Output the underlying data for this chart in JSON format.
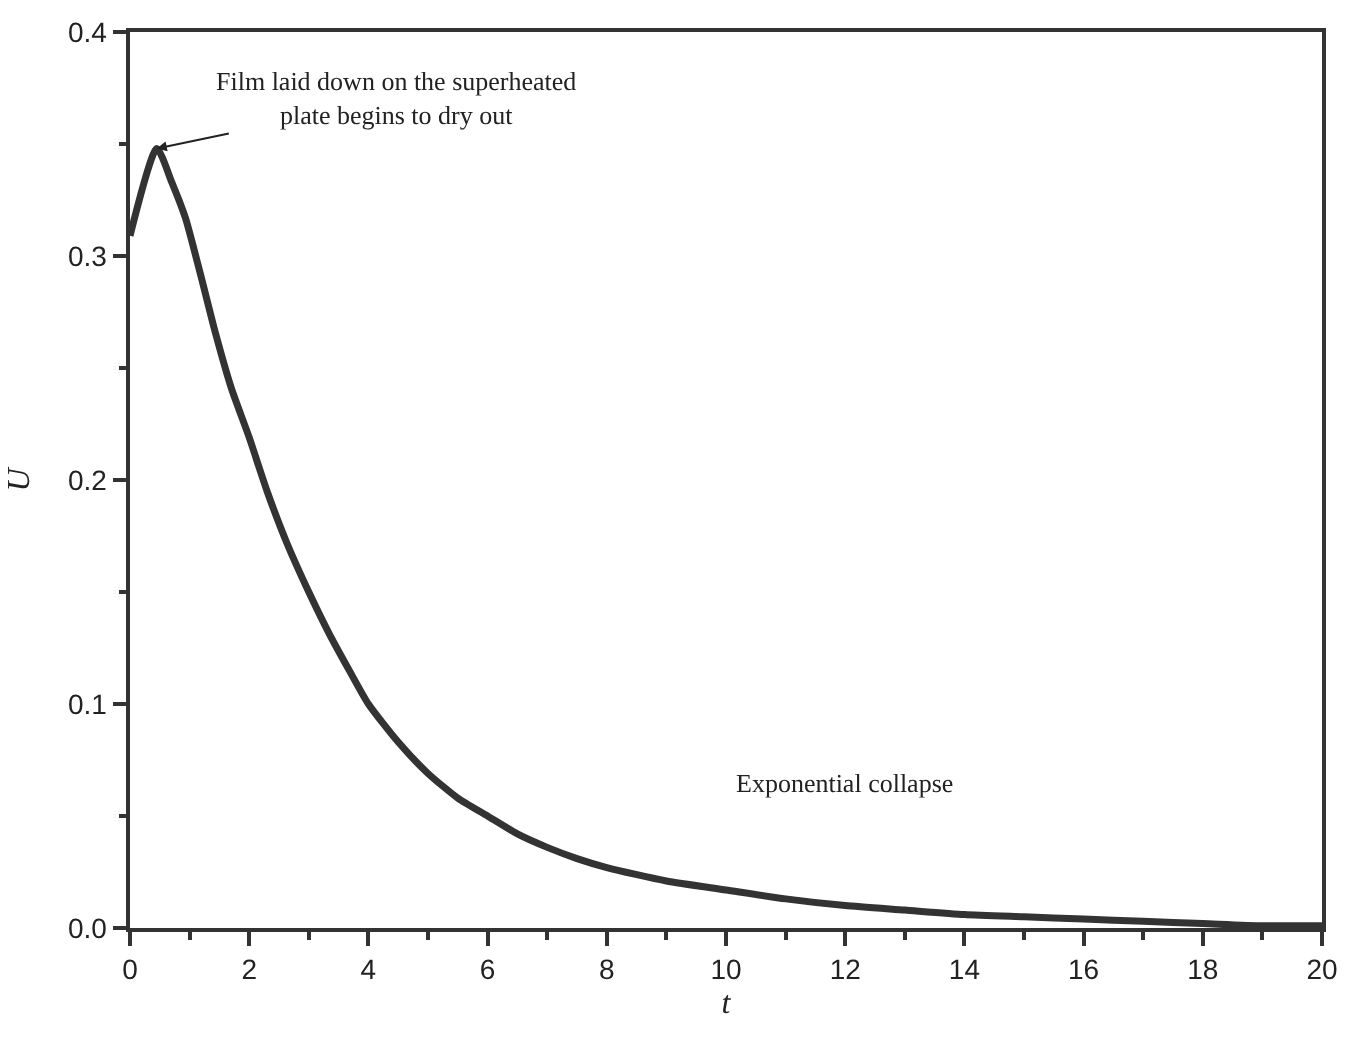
{
  "chart_data": {
    "type": "line",
    "xlabel": "t",
    "ylabel": "U",
    "x": [
      0,
      0.45,
      0.7,
      0.93,
      1.2,
      1.43,
      1.7,
      2,
      2.3,
      2.63,
      3,
      3.35,
      3.7,
      4,
      4.5,
      5,
      5.5,
      6,
      6.5,
      7,
      7.5,
      8,
      9,
      10,
      11,
      12,
      13,
      14,
      15,
      16,
      17,
      18,
      19,
      20
    ],
    "series": [
      {
        "color": "#333333",
        "values": [
          0.309,
          0.348,
          0.333,
          0.317,
          0.29,
          0.266,
          0.241,
          0.219,
          0.195,
          0.172,
          0.15,
          0.131,
          0.114,
          0.1,
          0.083,
          0.069,
          0.058,
          0.05,
          0.042,
          0.036,
          0.031,
          0.027,
          0.021,
          0.017,
          0.013,
          0.01,
          0.008,
          0.006,
          0.005,
          0.004,
          0.003,
          0.002,
          0.001,
          0.001
        ]
      }
    ],
    "xlim": [
      0,
      20
    ],
    "xticks": [
      0,
      2,
      4,
      6,
      8,
      10,
      12,
      14,
      16,
      18,
      20
    ],
    "ylim": [
      0,
      0.4
    ],
    "yticks": [
      {
        "value": 0,
        "label": "0.0"
      },
      0.1,
      0.2,
      0.3,
      0.4
    ],
    "annotations": [
      {
        "text": "Film laid down on the superheated\nplate begins to dry out",
        "x": 0.45,
        "y": 0.348
      },
      "Exponential collapse"
    ],
    "legend": false,
    "marker": "none",
    "line_style": "solid"
  }
}
